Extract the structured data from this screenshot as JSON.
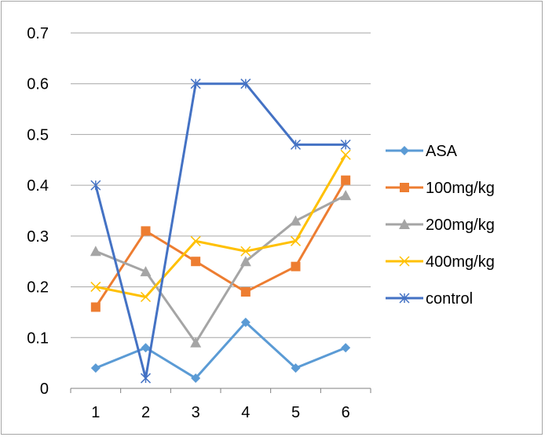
{
  "chart_data": {
    "type": "line",
    "title": "",
    "xlabel": "",
    "ylabel": "",
    "categories": [
      "1",
      "2",
      "3",
      "4",
      "5",
      "6"
    ],
    "ylim": [
      0,
      0.7
    ],
    "yticks": [
      "0",
      "0.1",
      "0.2",
      "0.3",
      "0.4",
      "0.5",
      "0.6",
      "0.7"
    ],
    "grid": "horizontal",
    "legend_position": "right",
    "series": [
      {
        "name": "ASA",
        "color": "#5b9bd5",
        "marker": "diamond",
        "values": [
          0.04,
          0.08,
          0.02,
          0.13,
          0.04,
          0.08
        ]
      },
      {
        "name": "100mg/kg",
        "color": "#ed7d31",
        "marker": "square",
        "values": [
          0.16,
          0.31,
          0.25,
          0.19,
          0.24,
          0.41
        ]
      },
      {
        "name": "200mg/kg",
        "color": "#a5a5a5",
        "marker": "triangle",
        "values": [
          0.27,
          0.23,
          0.09,
          0.25,
          0.33,
          0.38
        ]
      },
      {
        "name": "400mg/kg",
        "color": "#ffc000",
        "marker": "x",
        "values": [
          0.2,
          0.18,
          0.29,
          0.27,
          0.29,
          0.46
        ]
      },
      {
        "name": "control",
        "color": "#4472c4",
        "marker": "star",
        "values": [
          0.4,
          0.02,
          0.6,
          0.6,
          0.48,
          0.48
        ]
      }
    ]
  }
}
